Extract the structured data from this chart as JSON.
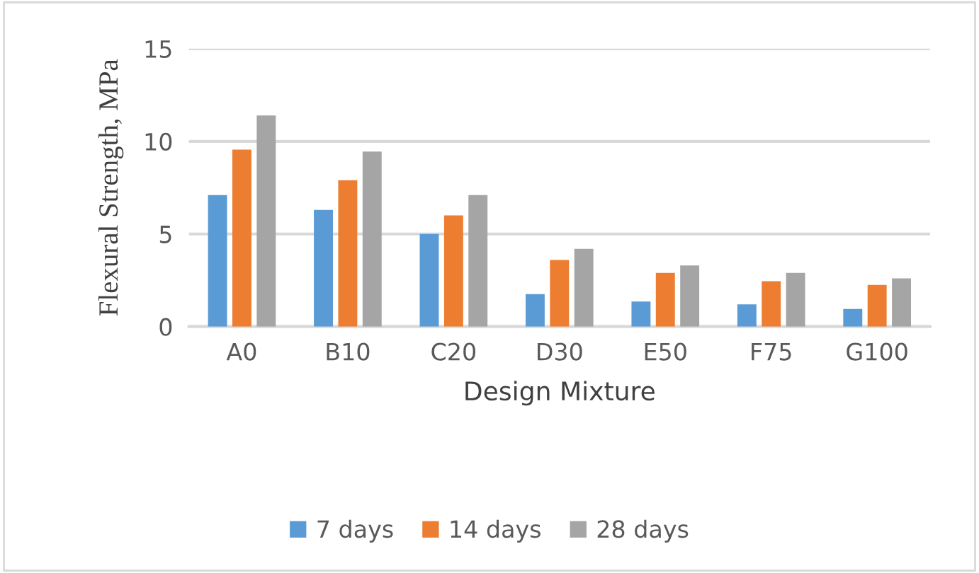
{
  "chart_data": {
    "type": "bar",
    "xlabel": "Design Mixture",
    "ylabel": "Flexural Strength, MPa",
    "categories": [
      "A0",
      "B10",
      "C20",
      "D30",
      "E50",
      "F75",
      "G100"
    ],
    "series": [
      {
        "name": "7 days",
        "color": "#5b9bd5",
        "values": [
          7.1,
          6.3,
          5.0,
          1.75,
          1.35,
          1.2,
          0.95
        ]
      },
      {
        "name": "14 days",
        "color": "#ed7d31",
        "values": [
          9.55,
          7.9,
          6.0,
          3.6,
          2.9,
          2.45,
          2.25
        ]
      },
      {
        "name": "28 days",
        "color": "#a5a5a5",
        "values": [
          11.4,
          9.45,
          7.1,
          4.2,
          3.3,
          2.9,
          2.6
        ]
      }
    ],
    "ylim": [
      0,
      15
    ],
    "yticks": [
      0,
      5,
      10,
      15
    ],
    "grid": "y",
    "legend": "bottom"
  }
}
